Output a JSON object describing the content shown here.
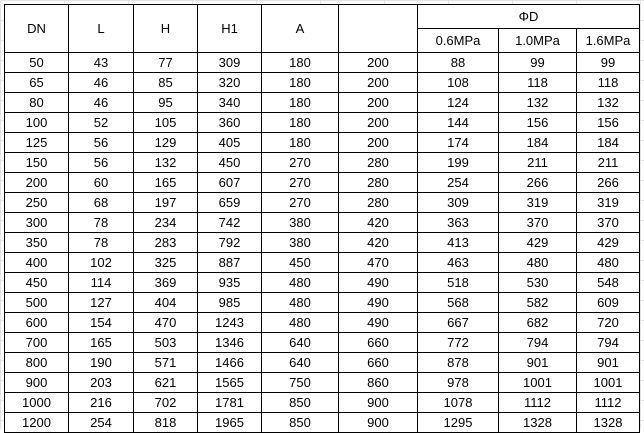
{
  "header": {
    "columns": [
      "DN",
      "L",
      "H",
      "H1",
      "A",
      ""
    ],
    "group_label": "ΦD",
    "sub_columns": [
      "0.6MPa",
      "1.0MPa",
      "1.6MPa"
    ]
  },
  "rows": [
    [
      "50",
      "43",
      "77",
      "309",
      "180",
      "200",
      "88",
      "99",
      "99"
    ],
    [
      "65",
      "46",
      "85",
      "320",
      "180",
      "200",
      "108",
      "118",
      "118"
    ],
    [
      "80",
      "46",
      "95",
      "340",
      "180",
      "200",
      "124",
      "132",
      "132"
    ],
    [
      "100",
      "52",
      "105",
      "360",
      "180",
      "200",
      "144",
      "156",
      "156"
    ],
    [
      "125",
      "56",
      "129",
      "405",
      "180",
      "200",
      "174",
      "184",
      "184"
    ],
    [
      "150",
      "56",
      "132",
      "450",
      "270",
      "280",
      "199",
      "211",
      "211"
    ],
    [
      "200",
      "60",
      "165",
      "607",
      "270",
      "280",
      "254",
      "266",
      "266"
    ],
    [
      "250",
      "68",
      "197",
      "659",
      "270",
      "280",
      "309",
      "319",
      "319"
    ],
    [
      "300",
      "78",
      "234",
      "742",
      "380",
      "420",
      "363",
      "370",
      "370"
    ],
    [
      "350",
      "78",
      "283",
      "792",
      "380",
      "420",
      "413",
      "429",
      "429"
    ],
    [
      "400",
      "102",
      "325",
      "887",
      "450",
      "470",
      "463",
      "480",
      "480"
    ],
    [
      "450",
      "114",
      "369",
      "935",
      "480",
      "490",
      "518",
      "530",
      "548"
    ],
    [
      "500",
      "127",
      "404",
      "985",
      "480",
      "490",
      "568",
      "582",
      "609"
    ],
    [
      "600",
      "154",
      "470",
      "1243",
      "480",
      "490",
      "667",
      "682",
      "720"
    ],
    [
      "700",
      "165",
      "503",
      "1346",
      "640",
      "660",
      "772",
      "794",
      "794"
    ],
    [
      "800",
      "190",
      "571",
      "1466",
      "640",
      "660",
      "878",
      "901",
      "901"
    ],
    [
      "900",
      "203",
      "621",
      "1565",
      "750",
      "860",
      "978",
      "1001",
      "1001"
    ],
    [
      "1000",
      "216",
      "702",
      "1781",
      "850",
      "900",
      "1078",
      "1112",
      "1112"
    ],
    [
      "1200",
      "254",
      "818",
      "1965",
      "850",
      "900",
      "1295",
      "1328",
      "1328"
    ]
  ]
}
